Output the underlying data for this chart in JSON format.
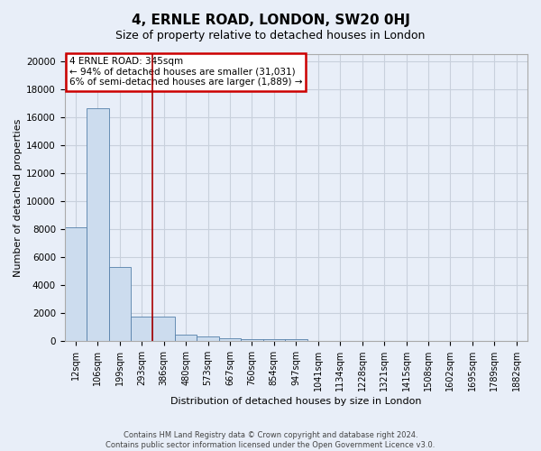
{
  "title": "4, ERNLE ROAD, LONDON, SW20 0HJ",
  "subtitle": "Size of property relative to detached houses in London",
  "xlabel": "Distribution of detached houses by size in London",
  "ylabel": "Number of detached properties",
  "footer_line1": "Contains HM Land Registry data © Crown copyright and database right 2024.",
  "footer_line2": "Contains public sector information licensed under the Open Government Licence v3.0.",
  "categories": [
    "12sqm",
    "106sqm",
    "199sqm",
    "293sqm",
    "386sqm",
    "480sqm",
    "573sqm",
    "667sqm",
    "760sqm",
    "854sqm",
    "947sqm",
    "1041sqm",
    "1134sqm",
    "1228sqm",
    "1321sqm",
    "1415sqm",
    "1508sqm",
    "1602sqm",
    "1695sqm",
    "1789sqm",
    "1882sqm"
  ],
  "values": [
    8100,
    16600,
    5300,
    1700,
    1700,
    450,
    300,
    200,
    130,
    100,
    100,
    0,
    0,
    0,
    0,
    0,
    0,
    0,
    0,
    0,
    0
  ],
  "bar_color": "#ccdcee",
  "bar_edge_color": "#5580aa",
  "annotation_line1": "4 ERNLE ROAD: 345sqm",
  "annotation_line2": "← 94% of detached houses are smaller (31,031)",
  "annotation_line3": "6% of semi-detached houses are larger (1,889) →",
  "annotation_box_facecolor": "#ffffff",
  "annotation_box_edgecolor": "#cc0000",
  "property_line_x": 3.5,
  "property_line_color": "#aa0000",
  "ylim_max": 20500,
  "yticks": [
    0,
    2000,
    4000,
    6000,
    8000,
    10000,
    12000,
    14000,
    16000,
    18000,
    20000
  ],
  "grid_color": "#c8d0dc",
  "bg_color": "#e8eef8",
  "title_fontsize": 11,
  "subtitle_fontsize": 9,
  "xlabel_fontsize": 8,
  "ylabel_fontsize": 8,
  "tick_fontsize": 7,
  "ytick_fontsize": 7.5,
  "footer_fontsize": 6,
  "annotation_fontsize": 7.5
}
